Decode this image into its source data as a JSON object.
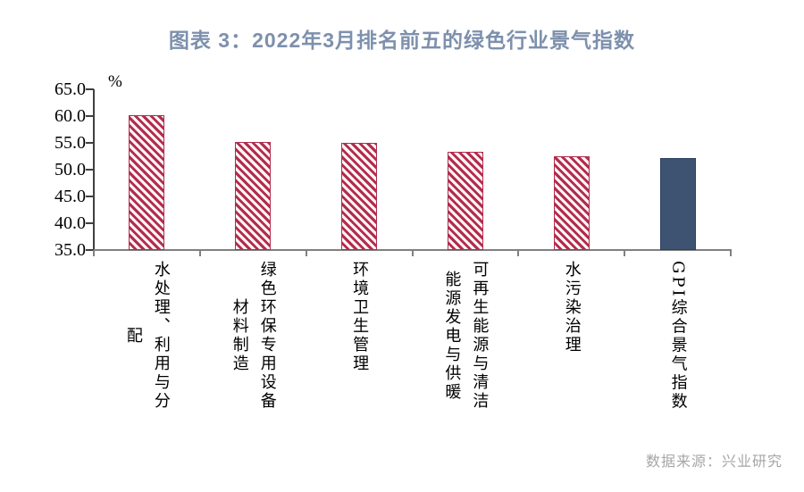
{
  "chart_data": {
    "type": "bar",
    "title": "图表 3：2022年3月排名前五的绿色行业景气指数",
    "unit_label": "%",
    "categories": [
      "水处理、利用与分配",
      "绿色环保专用设备材料制造",
      "环境卫生管理",
      "可再生能源与清洁能源发电与供暖",
      "水污染治理",
      "GPI综合景气指数"
    ],
    "category_label_columns": [
      [
        "水处理、利用与分",
        "配"
      ],
      [
        "绿色环保专用设备",
        "材料制造"
      ],
      [
        "环境卫生管理"
      ],
      [
        "可再生能源与清洁",
        "能源发电与供暖"
      ],
      [
        "水污染治理"
      ],
      [
        "GPI综合景气指数"
      ]
    ],
    "values": [
      60.2,
      55.1,
      55.0,
      53.3,
      52.5,
      52.1
    ],
    "bar_patterns": [
      "hatch",
      "hatch",
      "hatch",
      "hatch",
      "hatch",
      "solid"
    ],
    "ylim": [
      35.0,
      65.0
    ],
    "ytick_labels": [
      "65.0",
      "60.0",
      "55.0",
      "50.0",
      "45.0",
      "40.0",
      "35.0"
    ],
    "ytick_values": [
      65,
      60,
      55,
      50,
      45,
      40,
      35
    ],
    "grid": false,
    "legend": null,
    "source_note": "数据来源：兴业研究",
    "colors": {
      "title": "#7d90ad",
      "hatch_stripe": "#b12c4e",
      "hatch_bg": "#fdf4f4",
      "solid_bar": "#3e5272",
      "solid_border": "#2f4161",
      "axis_x": "#808080",
      "axis_y": "#404040",
      "source_text": "#a6a6a6"
    }
  }
}
